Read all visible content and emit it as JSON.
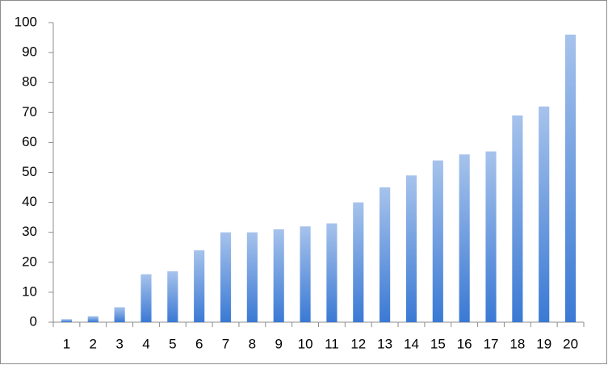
{
  "chart_data": {
    "type": "bar",
    "categories": [
      "1",
      "2",
      "3",
      "4",
      "5",
      "6",
      "7",
      "8",
      "9",
      "10",
      "11",
      "12",
      "13",
      "14",
      "15",
      "16",
      "17",
      "18",
      "19",
      "20"
    ],
    "values": [
      1,
      2,
      5,
      16,
      17,
      24,
      30,
      30,
      31,
      32,
      33,
      40,
      45,
      49,
      54,
      56,
      57,
      69,
      72,
      96
    ],
    "color": "#3a79d4",
    "ylim": [
      0,
      100
    ],
    "yticks": [
      0,
      10,
      20,
      30,
      40,
      50,
      60,
      70,
      80,
      90,
      100
    ],
    "grid": false
  }
}
